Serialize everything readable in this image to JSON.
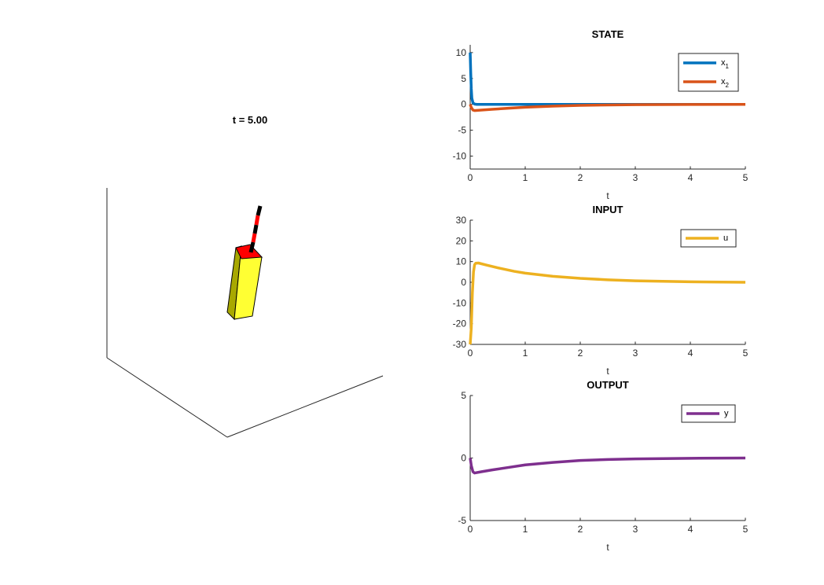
{
  "scene": {
    "title": "t = 5.00",
    "cart_color": "#ffff33",
    "cart_side_color": "#a8a800",
    "cart_top_color": "#ff0000",
    "pendulum_colors": [
      "#ff0000",
      "#000000"
    ]
  },
  "chart_data": [
    {
      "type": "line",
      "title": "STATE",
      "xlabel": "t",
      "ylabel": "",
      "xlim": [
        0,
        5
      ],
      "ylim": [
        -12.5,
        11.5
      ],
      "xticks": [
        "0",
        "1",
        "2",
        "3",
        "4",
        "5"
      ],
      "yticks": [
        "10",
        "5",
        "0",
        "-5",
        "-10"
      ],
      "legend_position": "top-right",
      "series": [
        {
          "name": "x1",
          "legend_main": "x",
          "legend_sub": "1",
          "color": "#0072bd",
          "x": [
            0,
            0.01,
            0.02,
            0.03,
            0.05,
            0.08,
            0.12,
            0.2,
            0.5,
            1,
            2,
            3,
            4,
            5
          ],
          "y": [
            10,
            6,
            3,
            1.2,
            0.3,
            0.05,
            0,
            0,
            0,
            0,
            0,
            0,
            0,
            0
          ]
        },
        {
          "name": "x2",
          "legend_main": "x",
          "legend_sub": "2",
          "color": "#d95319",
          "x": [
            0,
            0.02,
            0.05,
            0.08,
            0.2,
            0.4,
            0.7,
            1,
            1.5,
            2,
            2.5,
            3,
            4,
            5
          ],
          "y": [
            0,
            -0.6,
            -1.1,
            -1.2,
            -1.1,
            -0.95,
            -0.75,
            -0.55,
            -0.35,
            -0.2,
            -0.12,
            -0.07,
            -0.02,
            0
          ]
        }
      ]
    },
    {
      "type": "line",
      "title": "INPUT",
      "xlabel": "t",
      "ylabel": "",
      "xlim": [
        0,
        5
      ],
      "ylim": [
        -30,
        30
      ],
      "xticks": [
        "0",
        "1",
        "2",
        "3",
        "4",
        "5"
      ],
      "yticks": [
        "30",
        "20",
        "10",
        "0",
        "-10",
        "-20",
        "-30"
      ],
      "legend_position": "top-right",
      "series": [
        {
          "name": "u",
          "legend_main": "u",
          "legend_sub": "",
          "color": "#edb120",
          "x": [
            0,
            0.02,
            0.04,
            0.06,
            0.08,
            0.1,
            0.15,
            0.3,
            0.5,
            0.8,
            1,
            1.5,
            2,
            2.5,
            3,
            4,
            5
          ],
          "y": [
            -30,
            -22,
            -5,
            5,
            8.5,
            9.2,
            9.3,
            8.3,
            7,
            5.3,
            4.4,
            2.9,
            1.9,
            1.2,
            0.7,
            0.25,
            0
          ]
        }
      ]
    },
    {
      "type": "line",
      "title": "OUTPUT",
      "xlabel": "t",
      "ylabel": "",
      "xlim": [
        0,
        5
      ],
      "ylim": [
        -5,
        5
      ],
      "xticks": [
        "0",
        "1",
        "2",
        "3",
        "4",
        "5"
      ],
      "yticks": [
        "5",
        "0",
        "-5"
      ],
      "legend_position": "top-right",
      "series": [
        {
          "name": "y",
          "legend_main": "y",
          "legend_sub": "",
          "color": "#7e2f8e",
          "x": [
            0,
            0.02,
            0.05,
            0.08,
            0.2,
            0.4,
            0.7,
            1,
            1.5,
            2,
            2.5,
            3,
            4,
            5
          ],
          "y": [
            0,
            -0.6,
            -1.1,
            -1.2,
            -1.1,
            -0.95,
            -0.75,
            -0.55,
            -0.35,
            -0.2,
            -0.12,
            -0.07,
            -0.02,
            0
          ]
        }
      ]
    }
  ]
}
